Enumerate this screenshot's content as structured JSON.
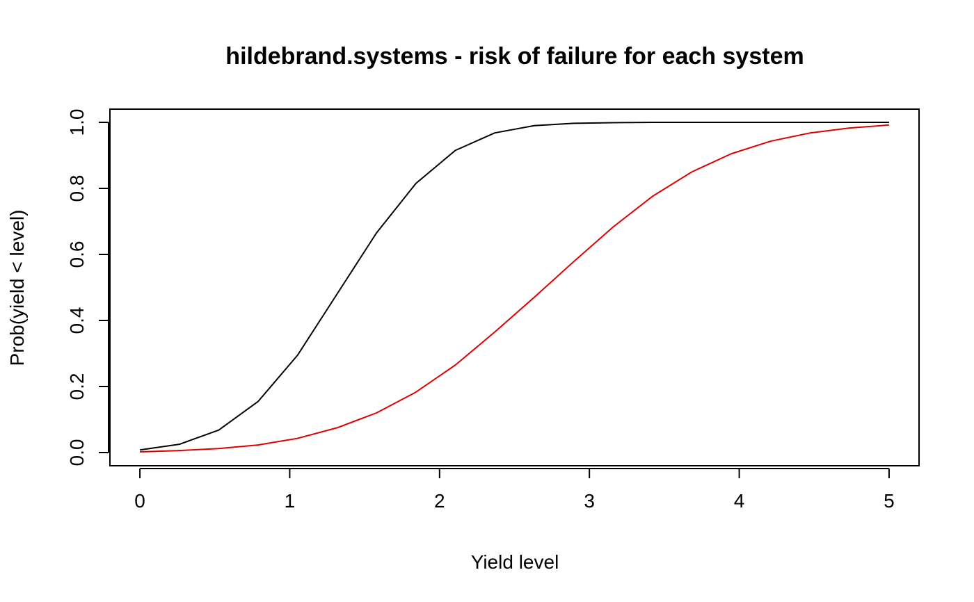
{
  "chart_data": {
    "type": "line",
    "title": "hildebrand.systems - risk of failure for each system",
    "xlabel": "Yield level",
    "ylabel": "Prob(yield < level)",
    "xlim": [
      -0.2,
      5.2
    ],
    "ylim": [
      -0.04,
      1.04
    ],
    "xticks": [
      0,
      1,
      2,
      3,
      4,
      5
    ],
    "xtick_labels": [
      "0",
      "1",
      "2",
      "3",
      "4",
      "5"
    ],
    "yticks": [
      0.0,
      0.2,
      0.4,
      0.6,
      0.8,
      1.0
    ],
    "ytick_labels": [
      "0.0",
      "0.2",
      "0.4",
      "0.6",
      "0.8",
      "1.0"
    ],
    "x": [
      0,
      0.2632,
      0.5263,
      0.7895,
      1.0526,
      1.3158,
      1.5789,
      1.8421,
      2.1053,
      2.3684,
      2.6316,
      2.8947,
      3.1579,
      3.4211,
      3.6842,
      3.9474,
      4.2105,
      4.4737,
      4.7368,
      5.0
    ],
    "series": [
      {
        "color": "#000000",
        "values": [
          0.008,
          0.025,
          0.068,
          0.155,
          0.295,
          0.48,
          0.665,
          0.815,
          0.915,
          0.968,
          0.99,
          0.997,
          0.999,
          1.0,
          1.0,
          1.0,
          1.0,
          1.0,
          1.0,
          1.0
        ]
      },
      {
        "color": "#e00000",
        "values": [
          0.002,
          0.006,
          0.012,
          0.023,
          0.043,
          0.075,
          0.12,
          0.183,
          0.265,
          0.365,
          0.47,
          0.578,
          0.683,
          0.776,
          0.85,
          0.905,
          0.943,
          0.968,
          0.983,
          0.992
        ]
      }
    ],
    "grid": false,
    "legend": "none"
  }
}
